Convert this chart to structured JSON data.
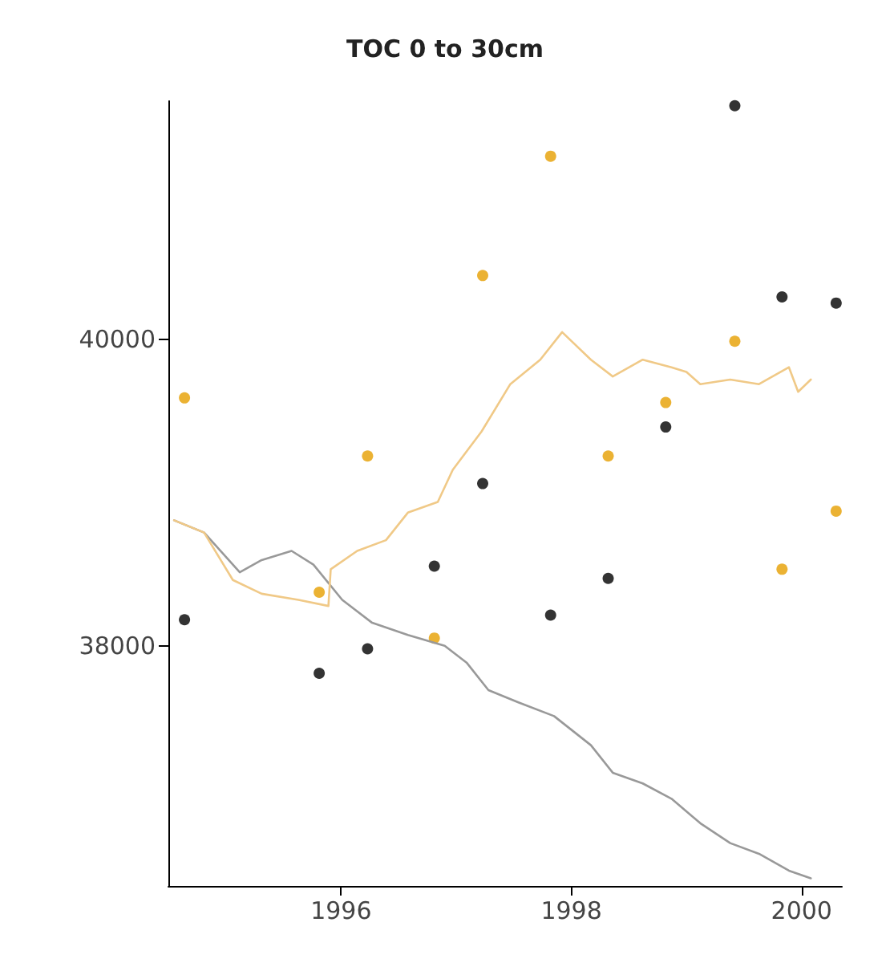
{
  "chart_data": {
    "type": "scatter",
    "title": "TOC 0 to 30cm",
    "xlim": [
      1994.5,
      2000.35
    ],
    "xticks": [
      1996,
      1998,
      2000
    ],
    "ylim": [
      36430,
      41560
    ],
    "yticks": [
      38000,
      40000
    ],
    "grid": false,
    "marker": "circle",
    "series": [
      {
        "type": "line",
        "color": "#999999",
        "marker": "none",
        "x": [
          1994.55,
          1994.81,
          1995.12,
          1995.31,
          1995.57,
          1995.76,
          1996.01,
          1996.27,
          1996.58,
          1996.9,
          1997.09,
          1997.28,
          1997.54,
          1997.85,
          1998.17,
          1998.36,
          1998.62,
          1998.87,
          1999.12,
          1999.38,
          1999.63,
          1999.89,
          2000.08
        ],
        "values": [
          38820,
          38740,
          38480,
          38560,
          38620,
          38530,
          38300,
          38150,
          38070,
          38000,
          37890,
          37710,
          37630,
          37540,
          37350,
          37170,
          37100,
          37000,
          36840,
          36710,
          36640,
          36530,
          36480
        ]
      },
      {
        "type": "line",
        "color": "#f0c987",
        "marker": "none",
        "x": [
          1994.55,
          1994.81,
          1995.06,
          1995.31,
          1995.63,
          1995.89,
          1995.91,
          1996.14,
          1996.39,
          1996.58,
          1996.84,
          1996.97,
          1997.22,
          1997.47,
          1997.73,
          1997.92,
          1998.17,
          1998.36,
          1998.62,
          1998.87,
          1999.0,
          1999.12,
          1999.38,
          1999.63,
          1999.89,
          1999.97,
          2000.08
        ],
        "values": [
          38820,
          38740,
          38430,
          38340,
          38300,
          38260,
          38500,
          38620,
          38690,
          38870,
          38940,
          39150,
          39400,
          39710,
          39870,
          40050,
          39870,
          39760,
          39870,
          39820,
          39790,
          39710,
          39740,
          39710,
          39820,
          39660,
          39740
        ]
      },
      {
        "color": "#000000",
        "x": [
          1994.64,
          1995.81,
          1996.23,
          1996.81,
          1997.23,
          1997.82,
          1998.32,
          1998.82,
          1999.42,
          1999.83,
          2000.3
        ],
        "values": [
          38170,
          37820,
          37980,
          38520,
          39060,
          38200,
          38440,
          39430,
          41530,
          40280,
          40240
        ]
      },
      {
        "color": "#e69f00",
        "x": [
          1994.64,
          1995.81,
          1996.23,
          1996.81,
          1997.23,
          1997.82,
          1998.32,
          1998.82,
          1999.42,
          1999.83,
          2000.3
        ],
        "values": [
          39620,
          38350,
          39240,
          38050,
          40420,
          41200,
          39240,
          39590,
          39990,
          38500,
          38880
        ]
      }
    ]
  }
}
